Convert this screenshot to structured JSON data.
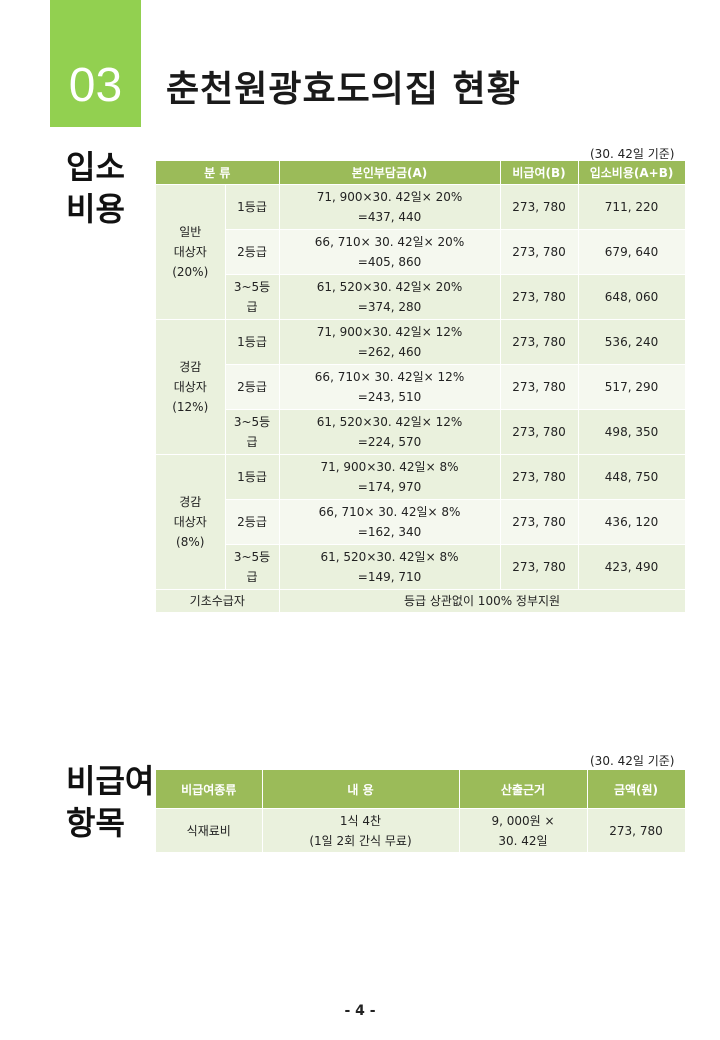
{
  "section": {
    "number": "03",
    "title": "춘천원광효도의집 현황"
  },
  "admission": {
    "side_label": [
      "입소",
      "비용"
    ],
    "basis_note": "(30. 42일 기준)",
    "headers": [
      "분 류",
      "본인부담금(A)",
      "비급여(B)",
      "입소비용(A+B)"
    ],
    "groups": [
      {
        "label": [
          "일반",
          "대상자",
          "(20%)"
        ],
        "rows": [
          {
            "grade": [
              "1등급"
            ],
            "formula": "71, 900×30. 42일× 20%",
            "result": "=437, 440",
            "nonpay": "273, 780",
            "total": "711, 220"
          },
          {
            "grade": [
              "2등급"
            ],
            "formula": "66, 710× 30. 42일× 20%",
            "result": "=405, 860",
            "nonpay": "273, 780",
            "total": "679, 640"
          },
          {
            "grade": [
              "3~5등",
              "급"
            ],
            "formula": "61, 520×30. 42일× 20%",
            "result": "=374, 280",
            "nonpay": "273, 780",
            "total": "648, 060"
          }
        ]
      },
      {
        "label": [
          "경감",
          "대상자",
          "(12%)"
        ],
        "rows": [
          {
            "grade": [
              "1등급"
            ],
            "formula": "71, 900×30. 42일× 12%",
            "result": "=262, 460",
            "nonpay": "273, 780",
            "total": "536, 240"
          },
          {
            "grade": [
              "2등급"
            ],
            "formula": "66, 710× 30. 42일× 12%",
            "result": "=243, 510",
            "nonpay": "273, 780",
            "total": "517, 290"
          },
          {
            "grade": [
              "3~5등",
              "급"
            ],
            "formula": "61, 520×30. 42일× 12%",
            "result": "=224, 570",
            "nonpay": "273, 780",
            "total": "498, 350"
          }
        ]
      },
      {
        "label": [
          "경감",
          "대상자",
          "(8%)"
        ],
        "rows": [
          {
            "grade": [
              "1등급"
            ],
            "formula": "71, 900×30. 42일× 8%",
            "result": "=174, 970",
            "nonpay": "273, 780",
            "total": "448, 750"
          },
          {
            "grade": [
              "2등급"
            ],
            "formula": "66, 710× 30. 42일× 8%",
            "result": "=162, 340",
            "nonpay": "273, 780",
            "total": "436, 120"
          },
          {
            "grade": [
              "3~5등",
              "급"
            ],
            "formula": "61, 520×30. 42일× 8%",
            "result": "=149, 710",
            "nonpay": "273, 780",
            "total": "423, 490"
          }
        ]
      }
    ],
    "basic_row": {
      "label": "기초수급자",
      "text": "등급 상관없이 100% 정부지원"
    }
  },
  "nonpay": {
    "side_label": [
      "비급여",
      "항목"
    ],
    "basis_note": "(30. 42일 기준)",
    "headers": [
      "비급여종류",
      "내 용",
      "산출근거",
      "금액(원)"
    ],
    "row": {
      "type": "식재료비",
      "content": [
        "1식 4찬",
        "(1일 2회 간식 무료)"
      ],
      "basis": [
        "9, 000원 ×",
        "30. 42일"
      ],
      "amount": "273, 780"
    }
  },
  "page_number": "- 4 -"
}
